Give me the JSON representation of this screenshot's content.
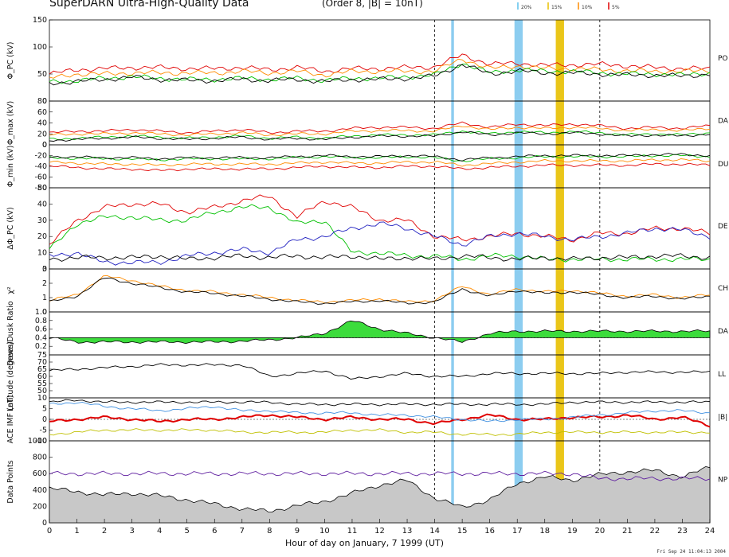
{
  "title": "SuperDARN Ultra-High-Quality Data",
  "subtitle": "(Order 8, |B| = 10nT)",
  "legend_labels": [
    "20%",
    "15%",
    "10%",
    "5%"
  ],
  "legend_colors": [
    "#5bc0eb",
    "#e8c000",
    "#ff8c00",
    "#e00000"
  ],
  "timestamp": "Fri Sep 24 11:04:13 2004",
  "chart_data": {
    "type": "line",
    "xlabel": "Hour of day on January, 7 1999 (UT)",
    "xlim": [
      0,
      24
    ],
    "xticks": [
      "0",
      "1",
      "2",
      "3",
      "4",
      "5",
      "6",
      "7",
      "8",
      "9",
      "10",
      "11",
      "12",
      "13",
      "14",
      "15",
      "16",
      "17",
      "18",
      "19",
      "20",
      "21",
      "22",
      "23",
      "24"
    ],
    "dashed_verticals": [
      14,
      20
    ],
    "highlight_bands": [
      {
        "start": 14.6,
        "end": 14.7,
        "color": "#7fc8ee"
      },
      {
        "start": 16.9,
        "end": 17.2,
        "color": "#7fc8ee"
      },
      {
        "start": 18.4,
        "end": 18.7,
        "color": "#e8c000"
      }
    ],
    "panels": [
      {
        "ylabel": "Φ_PC (kV)",
        "ylim": [
          0,
          150
        ],
        "yticks": [
          "0",
          "50",
          "100",
          "150"
        ],
        "right_label": "PO",
        "series": [
          {
            "color": "#e00000",
            "values": [
              50,
              58,
              60,
              62,
              62,
              60,
              60,
              62,
              58,
              62,
              55,
              60,
              60,
              62,
              63,
              85,
              68,
              70,
              66,
              67,
              68,
              65,
              62,
              60,
              60
            ]
          },
          {
            "color": "#ff8c00",
            "values": [
              42,
              50,
              50,
              52,
              52,
              52,
              52,
              55,
              52,
              55,
              48,
              55,
              55,
              55,
              55,
              78,
              60,
              65,
              60,
              60,
              58,
              56,
              55,
              55,
              56
            ]
          },
          {
            "color": "#00c000",
            "values": [
              35,
              38,
              42,
              45,
              42,
              40,
              40,
              42,
              40,
              42,
              38,
              42,
              42,
              45,
              48,
              70,
              52,
              58,
              55,
              55,
              52,
              50,
              50,
              48,
              52
            ]
          },
          {
            "color": "#000000",
            "values": [
              33,
              36,
              40,
              44,
              40,
              38,
              38,
              40,
              38,
              40,
              36,
              40,
              40,
              42,
              46,
              68,
              50,
              56,
              52,
              52,
              50,
              48,
              48,
              46,
              50
            ]
          }
        ]
      },
      {
        "ylabel": "Φ_max (kV)",
        "ylim": [
          0,
          80
        ],
        "yticks": [
          "0",
          "20",
          "40",
          "60",
          "80"
        ],
        "right_label": "DA",
        "series": [
          {
            "color": "#e00000",
            "values": [
              22,
              25,
              25,
              28,
              25,
              22,
              25,
              28,
              22,
              25,
              25,
              30,
              32,
              32,
              30,
              40,
              32,
              38,
              35,
              38,
              35,
              30,
              32,
              30,
              35
            ]
          },
          {
            "color": "#ff8c00",
            "values": [
              18,
              20,
              20,
              22,
              20,
              18,
              20,
              22,
              18,
              20,
              20,
              25,
              26,
              26,
              25,
              35,
              28,
              32,
              30,
              32,
              30,
              26,
              28,
              26,
              30
            ]
          },
          {
            "color": "#00c000",
            "values": [
              10,
              12,
              14,
              16,
              14,
              12,
              14,
              16,
              12,
              14,
              12,
              16,
              18,
              18,
              18,
              25,
              20,
              24,
              22,
              24,
              22,
              18,
              20,
              18,
              22
            ]
          },
          {
            "color": "#000000",
            "values": [
              8,
              10,
              12,
              14,
              12,
              10,
              12,
              14,
              10,
              12,
              10,
              14,
              16,
              16,
              16,
              24,
              18,
              22,
              20,
              22,
              20,
              16,
              18,
              16,
              20
            ]
          }
        ]
      },
      {
        "ylabel": "Φ_min (kV)",
        "ylim": [
          -80,
          0
        ],
        "yticks": [
          "-80",
          "-60",
          "-40",
          "-20",
          "0"
        ],
        "right_label": "DU",
        "series": [
          {
            "color": "#e00000",
            "values": [
              -40,
              -42,
              -45,
              -45,
              -48,
              -45,
              -45,
              -45,
              -45,
              -42,
              -40,
              -42,
              -42,
              -40,
              -40,
              -45,
              -42,
              -40,
              -38,
              -38,
              -38,
              -38,
              -36,
              -36,
              -38
            ]
          },
          {
            "color": "#ff8c00",
            "values": [
              -32,
              -34,
              -36,
              -36,
              -38,
              -36,
              -36,
              -36,
              -36,
              -34,
              -32,
              -34,
              -34,
              -32,
              -32,
              -38,
              -35,
              -32,
              -30,
              -30,
              -30,
              -30,
              -28,
              -28,
              -30
            ]
          },
          {
            "color": "#00c000",
            "values": [
              -24,
              -25,
              -26,
              -26,
              -28,
              -26,
              -26,
              -26,
              -26,
              -24,
              -22,
              -24,
              -24,
              -22,
              -24,
              -30,
              -26,
              -24,
              -22,
              -22,
              -22,
              -22,
              -20,
              -20,
              -22
            ]
          },
          {
            "color": "#000000",
            "values": [
              -22,
              -23,
              -24,
              -24,
              -26,
              -24,
              -24,
              -24,
              -24,
              -22,
              -20,
              -22,
              -22,
              -20,
              -22,
              -28,
              -24,
              -22,
              -20,
              -20,
              -20,
              -20,
              -18,
              -18,
              -20
            ]
          }
        ]
      },
      {
        "ylabel": "ΔΦ_PC (kV)",
        "ylim": [
          0,
          50
        ],
        "yticks": [
          "0",
          "10",
          "20",
          "30",
          "40",
          "50"
        ],
        "right_label": "DE",
        "series": [
          {
            "color": "#e00000",
            "values": [
              15,
              30,
              38,
              40,
              40,
              35,
              38,
              42,
              45,
              32,
              42,
              38,
              30,
              30,
              20,
              18,
              20,
              22,
              20,
              18,
              22,
              22,
              25,
              25,
              22
            ]
          },
          {
            "color": "#00c000",
            "values": [
              12,
              28,
              32,
              32,
              30,
              30,
              35,
              38,
              38,
              28,
              30,
              10,
              10,
              8,
              8,
              6,
              8,
              8,
              6,
              6,
              6,
              6,
              6,
              6,
              6
            ]
          },
          {
            "color": "#2020c0",
            "values": [
              8,
              10,
              4,
              4,
              4,
              8,
              10,
              12,
              10,
              18,
              20,
              25,
              28,
              25,
              20,
              15,
              20,
              22,
              20,
              18,
              20,
              22,
              25,
              24,
              20
            ]
          },
          {
            "color": "#000000",
            "values": [
              6,
              7,
              7,
              7,
              8,
              6,
              7,
              8,
              7,
              8,
              7,
              8,
              6,
              7,
              6,
              8,
              7,
              6,
              7,
              6,
              7,
              7,
              8,
              8,
              7
            ]
          }
        ]
      },
      {
        "ylabel": "χ²",
        "ylim": [
          0,
          3
        ],
        "yticks": [
          "0",
          "1",
          "2",
          "3"
        ],
        "right_label": "CH",
        "series": [
          {
            "color": "#ff8c00",
            "values": [
              0.8,
              1.2,
              2.5,
              2.2,
              1.8,
              1.5,
              1.4,
              1.2,
              1.0,
              0.8,
              0.7,
              0.8,
              0.9,
              0.7,
              0.8,
              1.8,
              1.2,
              1.6,
              1.4,
              1.5,
              1.3,
              1.1,
              1.2,
              1.0,
              1.2
            ]
          },
          {
            "color": "#000000",
            "values": [
              0.7,
              1.1,
              2.4,
              2.0,
              1.7,
              1.4,
              1.3,
              1.1,
              0.9,
              0.7,
              0.6,
              0.7,
              0.8,
              0.6,
              0.7,
              1.6,
              1.1,
              1.5,
              1.3,
              1.4,
              1.2,
              1.0,
              1.1,
              0.9,
              1.1
            ]
          }
        ]
      },
      {
        "ylabel": "Dawn/Dusk Ratio",
        "ylim": [
          0,
          1.0
        ],
        "yticks": [
          "0.2",
          "0.4",
          "0.6",
          "0.8",
          "1.0"
        ],
        "right_label": "DA",
        "series": [
          {
            "color": "#000000",
            "values": [
              0.4,
              0.3,
              0.3,
              0.3,
              0.3,
              0.3,
              0.3,
              0.32,
              0.35,
              0.4,
              0.5,
              0.8,
              0.6,
              0.5,
              0.4,
              0.3,
              0.5,
              0.55,
              0.55,
              0.55,
              0.55,
              0.55,
              0.55,
              0.55,
              0.55
            ]
          }
        ]
      },
      {
        "ylabel": "Latitude (degrees)",
        "ylim": [
          45,
          75
        ],
        "yticks": [
          "50",
          "55",
          "60",
          "65",
          "70",
          "75"
        ],
        "right_label": "LL",
        "series": [
          {
            "color": "#000000",
            "values": [
              64,
              65,
              66,
              67,
              68,
              68,
              68,
              68,
              60,
              62,
              64,
              58,
              60,
              62,
              60,
              60,
              62,
              62,
              62,
              62,
              62,
              63,
              63,
              63,
              63
            ]
          }
        ]
      },
      {
        "ylabel": "ACE IMF (nT)",
        "ylim": [
          -10,
          10
        ],
        "yticks": [
          "-10",
          "-5",
          "0",
          "5",
          "10"
        ],
        "right_label": "|B|",
        "series": [
          {
            "color": "#000000",
            "values": [
              8,
              9,
              8,
              8,
              8,
              8,
              8,
              8,
              8,
              7,
              7,
              7,
              7,
              7,
              7,
              7,
              7,
              7,
              7,
              8,
              8,
              8,
              8,
              8,
              8
            ]
          },
          {
            "color": "#e00000",
            "values": [
              -1,
              0,
              1,
              0,
              -1,
              0,
              0,
              1,
              2,
              1,
              0,
              1,
              0,
              0,
              -2,
              0,
              2,
              0,
              0,
              1,
              1,
              2,
              0,
              1,
              -3
            ]
          },
          {
            "color": "#4090e0",
            "values": [
              7,
              8,
              6,
              5,
              4,
              5,
              6,
              4,
              4,
              3,
              3,
              3,
              2,
              2,
              1,
              0,
              -1,
              0,
              0,
              1,
              2,
              3,
              4,
              4,
              3
            ]
          },
          {
            "color": "#c0c000",
            "values": [
              -7,
              -6,
              -5,
              -5,
              -5,
              -5,
              -5,
              -6,
              -6,
              -6,
              -6,
              -5,
              -5,
              -6,
              -6,
              -7,
              -7,
              -7,
              -6,
              -6,
              -6,
              -6,
              -6,
              -6,
              -6
            ]
          }
        ]
      },
      {
        "ylabel": "Data Points",
        "ylim": [
          0,
          1000
        ],
        "yticks": [
          "0",
          "200",
          "400",
          "600",
          "800",
          "1000"
        ],
        "right_label": "NP",
        "series": [
          {
            "color": "#000000",
            "values": [
              420,
              380,
              340,
              360,
              330,
              280,
              230,
              170,
              140,
              210,
              260,
              360,
              460,
              520,
              300,
              190,
              280,
              480,
              560,
              520,
              590,
              620,
              640,
              560,
              680
            ]
          },
          {
            "color": "#6020a0",
            "values": [
              600,
              600,
              600,
              600,
              600,
              600,
              600,
              600,
              600,
              600,
              600,
              600,
              600,
              600,
              600,
              600,
              600,
              600,
              600,
              600,
              540,
              540,
              540,
              540,
              540
            ]
          }
        ]
      }
    ]
  }
}
